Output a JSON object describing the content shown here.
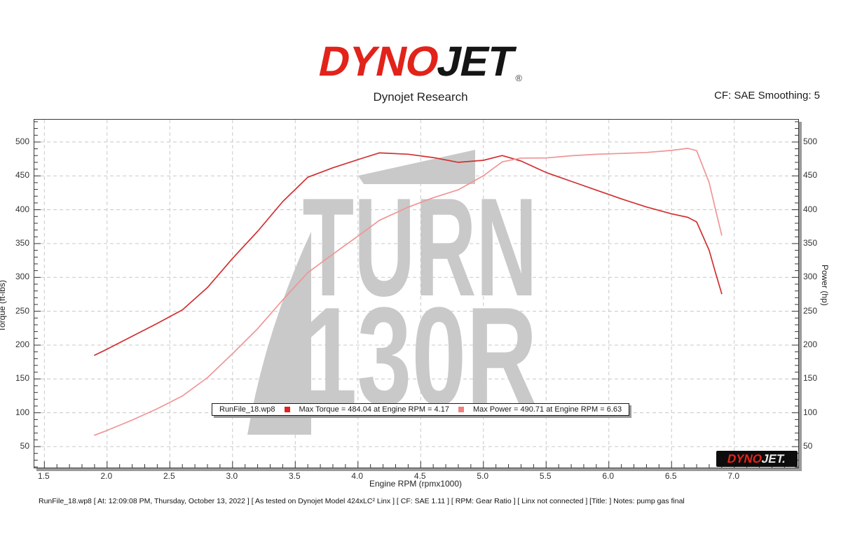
{
  "header": {
    "logo_dyno": "DYNO",
    "logo_jet": "JET",
    "registered": "®",
    "subtitle": "Dynojet Research",
    "cf_text": "CF: SAE Smoothing: 5"
  },
  "legend": {
    "file": "RunFile_18.wp8",
    "max_torque": "Max Torque = 484.04 at Engine RPM = 4.17",
    "max_power": "Max Power = 490.71 at Engine RPM = 6.63",
    "torque_swatch_color": "#e32222",
    "power_swatch_color": "#f28080"
  },
  "watermark": {
    "line1": "TURN",
    "line2": "130R",
    "color": "#c9c9c9"
  },
  "badge": {
    "dyno": "DYNO",
    "jet": "JET."
  },
  "footer": {
    "text": "RunFile_18.wp8 [ At: 12:09:08 PM, Thursday, October 13, 2022 ] [ As tested on Dynojet Model 424xLC² Linx ] [ CF: SAE 1.11 ] [ RPM: Gear Ratio ] [ Linx not connected ] [Title: ]  Notes: pump gas final"
  },
  "chart_data": {
    "type": "line",
    "title": "",
    "xlabel": "Engine RPM (rpmx1000)",
    "ylabel_left": "Torque (ft-lbs)",
    "ylabel_right": "Power (hp)",
    "xlim": [
      1.42,
      7.51
    ],
    "ylim": [
      19,
      533
    ],
    "x_ticks": [
      1.5,
      2.0,
      2.5,
      3.0,
      3.5,
      4.0,
      4.5,
      5.0,
      5.5,
      6.0,
      6.5,
      7.0
    ],
    "y_ticks": [
      50,
      100,
      150,
      200,
      250,
      300,
      350,
      400,
      450,
      500
    ],
    "minor_x_step": 0.1,
    "minor_y_step": 10,
    "grid": "dashed",
    "legend_position": "bottom-center-inside",
    "x": [
      1.9,
      2.0,
      2.2,
      2.4,
      2.6,
      2.8,
      3.0,
      3.2,
      3.4,
      3.6,
      3.8,
      4.0,
      4.17,
      4.4,
      4.6,
      4.8,
      5.0,
      5.15,
      5.3,
      5.5,
      5.7,
      5.9,
      6.1,
      6.3,
      6.5,
      6.63,
      6.7,
      6.8,
      6.85,
      6.9
    ],
    "series": [
      {
        "name": "Torque (ft-lbs)",
        "color": "#d13030",
        "values": [
          185,
          194,
          213,
          232,
          252,
          285,
          328,
          368,
          412,
          448,
          462,
          474,
          484,
          482,
          477,
          470,
          473,
          480,
          472,
          455,
          442,
          429,
          416,
          404,
          394,
          388.7,
          382,
          340,
          307,
          276
        ]
      },
      {
        "name": "Power (hp)",
        "color": "#f09595",
        "values": [
          66.9,
          73.9,
          89.2,
          106.0,
          124.8,
          151.9,
          187.4,
          224.2,
          266.7,
          307.1,
          334.3,
          361.0,
          384.3,
          403.8,
          417.8,
          429.5,
          450.3,
          470.7,
          476.3,
          476.4,
          479.7,
          481.9,
          483.1,
          484.6,
          487.6,
          490.7,
          487.3,
          440.1,
          400.4,
          362.6
        ]
      }
    ]
  }
}
